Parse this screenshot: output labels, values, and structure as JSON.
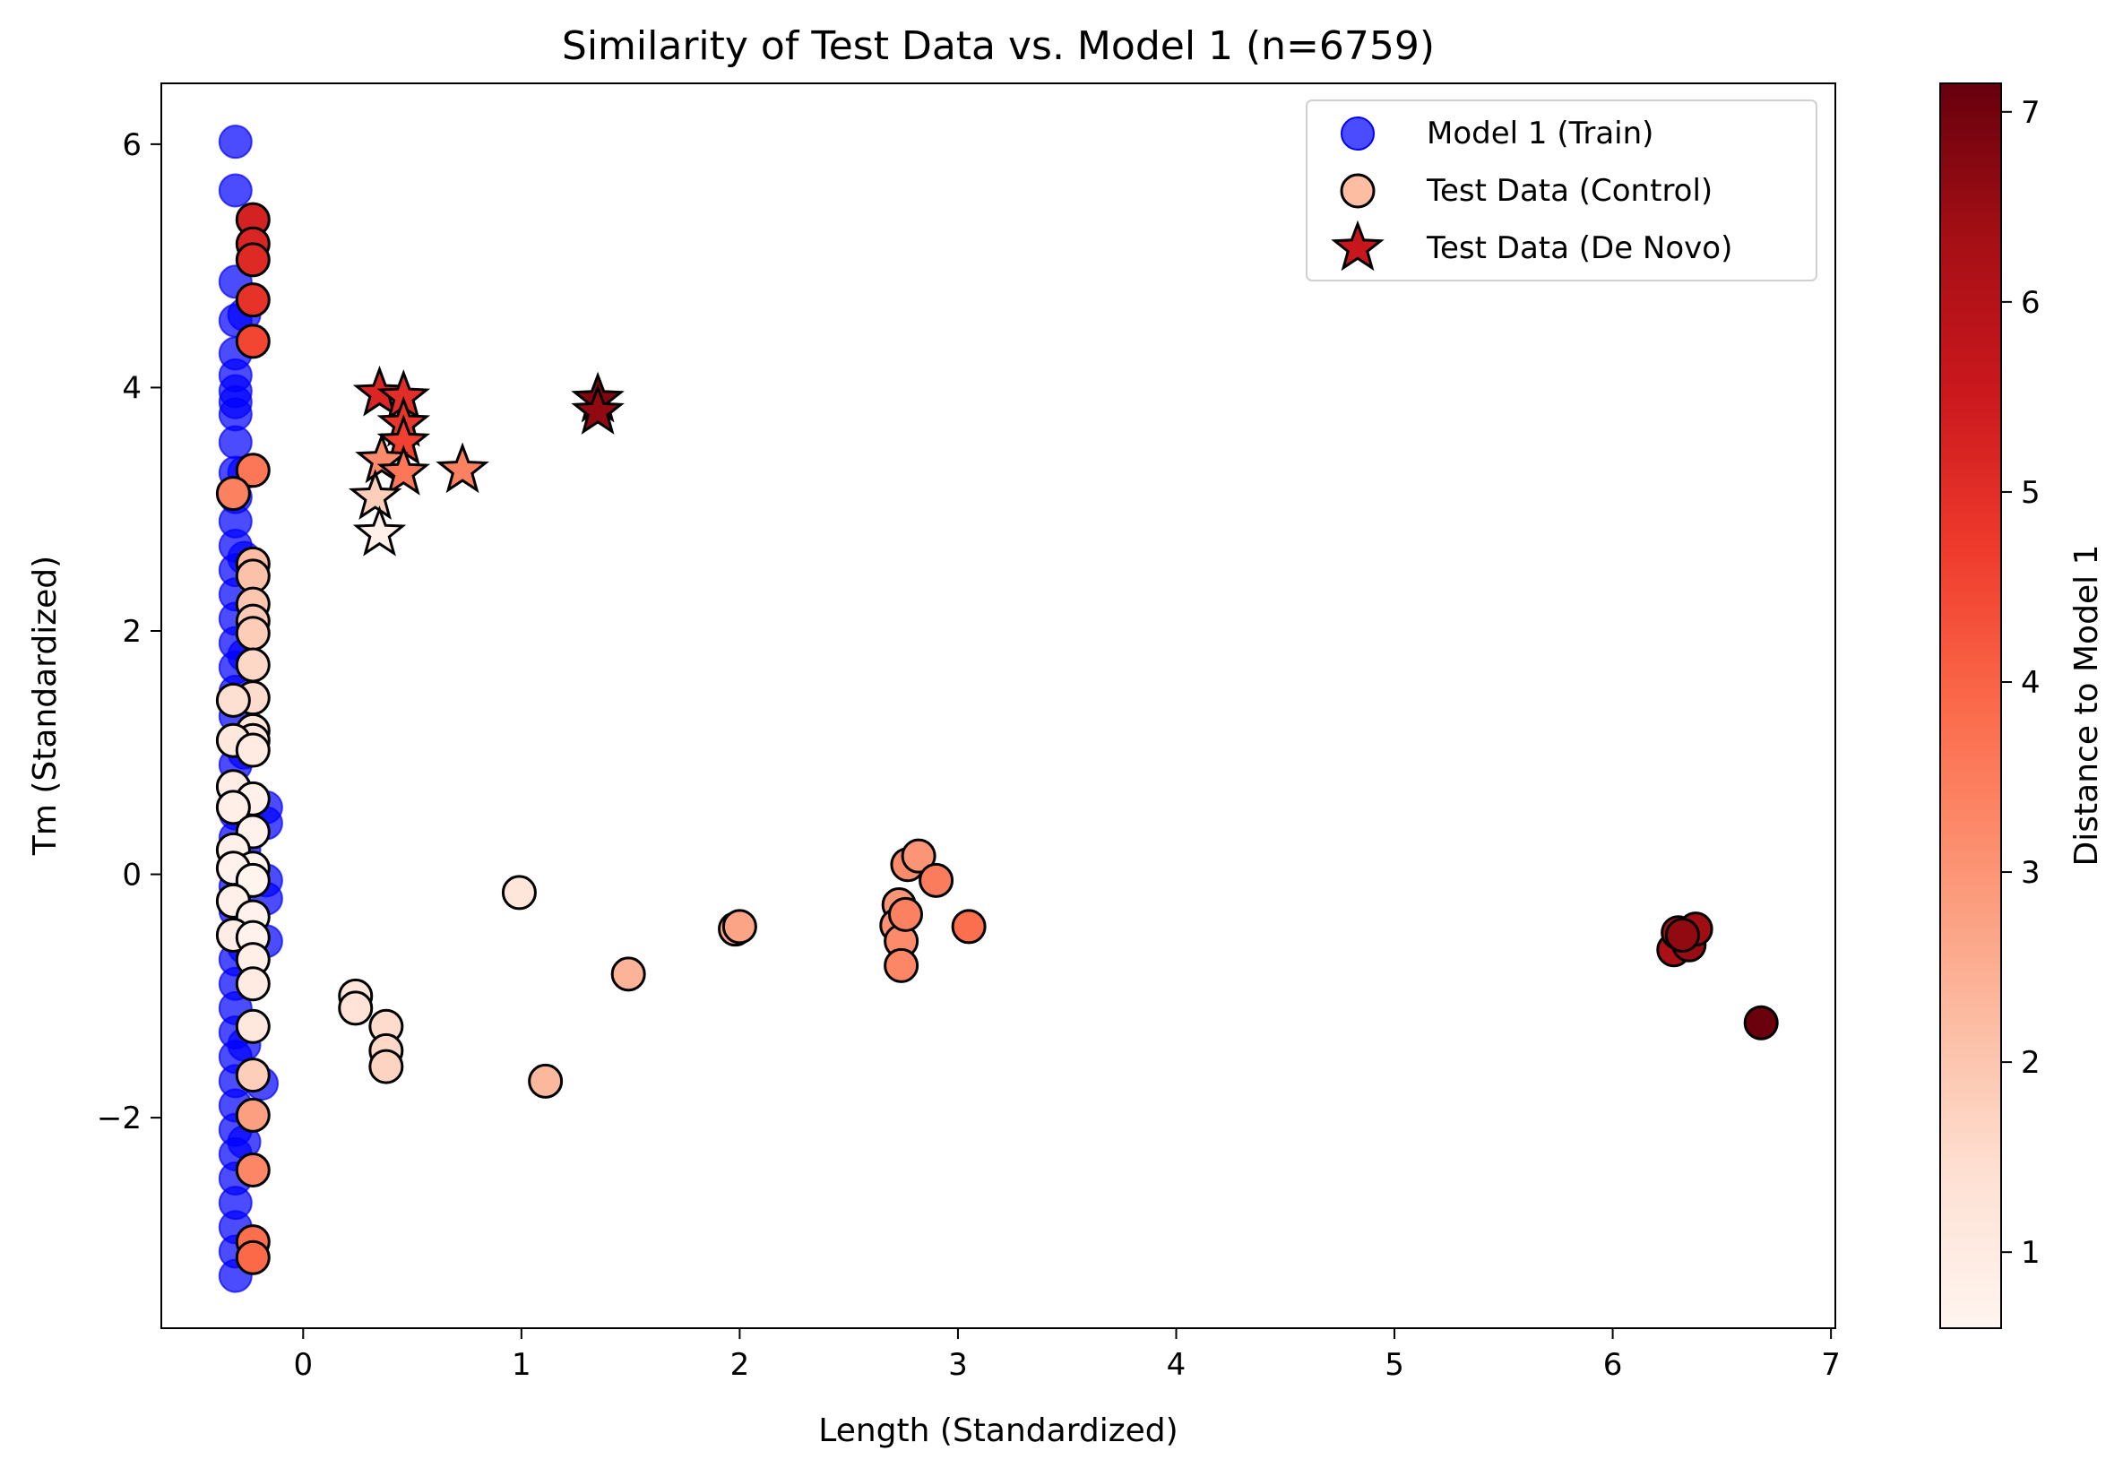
{
  "chart_data": {
    "type": "scatter",
    "title": "Similarity of Test Data vs. Model 1 (n=6759)",
    "xlabel": "Length (Standardized)",
    "ylabel": "Tm (Standardized)",
    "xlim": [
      -0.65,
      7.02
    ],
    "ylim": [
      -3.73,
      6.5
    ],
    "xticks": [
      0,
      1,
      2,
      3,
      4,
      5,
      6,
      7
    ],
    "yticks": [
      -2,
      0,
      2,
      4,
      6
    ],
    "xtick_labels": [
      "0",
      "1",
      "2",
      "3",
      "4",
      "5",
      "6",
      "7"
    ],
    "ytick_labels": [
      "−2",
      "0",
      "2",
      "4",
      "6"
    ],
    "grid": false,
    "legend_position": "top-right",
    "colorbar": {
      "label": "Distance to Model 1",
      "colormap": "Reds",
      "range": [
        0.6,
        7.15
      ],
      "ticks": [
        1,
        2,
        3,
        4,
        5,
        6,
        7
      ],
      "tick_labels": [
        "1",
        "2",
        "3",
        "4",
        "5",
        "6",
        "7"
      ]
    },
    "series": [
      {
        "name": "Model 1 (Train)",
        "marker": "circle",
        "color": "#0000ff",
        "opacity": 0.7,
        "points": [
          [
            -0.31,
            6.02
          ],
          [
            -0.31,
            5.62
          ],
          [
            -0.31,
            4.87
          ],
          [
            -0.31,
            4.55
          ],
          [
            -0.31,
            4.28
          ],
          [
            -0.31,
            4.1
          ],
          [
            -0.31,
            3.97
          ],
          [
            -0.31,
            3.88
          ],
          [
            -0.31,
            3.78
          ],
          [
            -0.31,
            3.55
          ],
          [
            -0.31,
            3.3
          ],
          [
            -0.31,
            3.1
          ],
          [
            -0.31,
            2.9
          ],
          [
            -0.31,
            2.7
          ],
          [
            -0.31,
            2.5
          ],
          [
            -0.31,
            2.3
          ],
          [
            -0.31,
            2.1
          ],
          [
            -0.31,
            1.9
          ],
          [
            -0.31,
            1.7
          ],
          [
            -0.31,
            1.5
          ],
          [
            -0.31,
            1.3
          ],
          [
            -0.31,
            1.1
          ],
          [
            -0.31,
            0.9
          ],
          [
            -0.31,
            0.7
          ],
          [
            -0.31,
            0.5
          ],
          [
            -0.31,
            0.3
          ],
          [
            -0.31,
            0.1
          ],
          [
            -0.31,
            -0.1
          ],
          [
            -0.31,
            -0.3
          ],
          [
            -0.31,
            -0.5
          ],
          [
            -0.31,
            -0.7
          ],
          [
            -0.31,
            -0.9
          ],
          [
            -0.31,
            -1.1
          ],
          [
            -0.31,
            -1.3
          ],
          [
            -0.31,
            -1.5
          ],
          [
            -0.31,
            -1.7
          ],
          [
            -0.31,
            -1.9
          ],
          [
            -0.31,
            -2.1
          ],
          [
            -0.31,
            -2.3
          ],
          [
            -0.31,
            -2.5
          ],
          [
            -0.31,
            -2.7
          ],
          [
            -0.31,
            -2.9
          ],
          [
            -0.31,
            -3.1
          ],
          [
            -0.31,
            -3.3
          ],
          [
            -0.27,
            4.6
          ],
          [
            -0.27,
            3.3
          ],
          [
            -0.27,
            2.6
          ],
          [
            -0.27,
            1.8
          ],
          [
            -0.27,
            1.0
          ],
          [
            -0.27,
            0.2
          ],
          [
            -0.27,
            -0.6
          ],
          [
            -0.27,
            -1.4
          ],
          [
            -0.27,
            -2.2
          ],
          [
            -0.17,
            0.55
          ],
          [
            -0.17,
            0.42
          ],
          [
            -0.17,
            -0.05
          ],
          [
            -0.17,
            -0.2
          ],
          [
            -0.17,
            -0.55
          ],
          [
            -0.19,
            -1.72
          ]
        ]
      },
      {
        "name": "Test Data (Control)",
        "marker": "circle",
        "points": [
          [
            -0.23,
            5.38,
            5.3
          ],
          [
            -0.23,
            5.18,
            5.2
          ],
          [
            -0.23,
            5.05,
            5.1
          ],
          [
            -0.23,
            4.72,
            4.9
          ],
          [
            -0.23,
            4.38,
            4.5
          ],
          [
            -0.23,
            3.32,
            3.6
          ],
          [
            -0.32,
            3.13,
            3.4
          ],
          [
            -0.23,
            2.55,
            2.2
          ],
          [
            -0.23,
            2.45,
            2.1
          ],
          [
            -0.23,
            2.22,
            2.0
          ],
          [
            -0.23,
            2.08,
            1.9
          ],
          [
            -0.23,
            1.98,
            1.85
          ],
          [
            -0.23,
            1.72,
            1.6
          ],
          [
            -0.23,
            1.45,
            1.5
          ],
          [
            -0.32,
            1.43,
            1.4
          ],
          [
            -0.23,
            1.18,
            1.2
          ],
          [
            -0.23,
            1.1,
            1.15
          ],
          [
            -0.32,
            1.1,
            1.1
          ],
          [
            -0.23,
            1.02,
            1.0
          ],
          [
            -0.32,
            0.72,
            0.9
          ],
          [
            -0.23,
            0.62,
            0.8
          ],
          [
            -0.32,
            0.55,
            0.85
          ],
          [
            -0.23,
            0.35,
            0.7
          ],
          [
            -0.32,
            0.2,
            0.8
          ],
          [
            -0.23,
            0.05,
            0.65
          ],
          [
            -0.32,
            0.05,
            0.75
          ],
          [
            -0.23,
            -0.05,
            0.65
          ],
          [
            -0.32,
            -0.22,
            0.8
          ],
          [
            -0.23,
            -0.35,
            0.7
          ],
          [
            -0.32,
            -0.5,
            0.9
          ],
          [
            -0.23,
            -0.52,
            0.75
          ],
          [
            -0.23,
            -0.7,
            0.85
          ],
          [
            -0.23,
            -0.9,
            1.0
          ],
          [
            -0.23,
            -1.25,
            1.1
          ],
          [
            -0.23,
            -1.65,
            1.8
          ],
          [
            -0.23,
            -1.98,
            2.8
          ],
          [
            -0.23,
            -2.43,
            3.3
          ],
          [
            -0.23,
            -3.02,
            3.8
          ],
          [
            -0.23,
            -3.15,
            3.9
          ],
          [
            0.24,
            -1.0,
            1.2
          ],
          [
            0.24,
            -1.1,
            1.3
          ],
          [
            0.38,
            -1.25,
            1.5
          ],
          [
            0.38,
            -1.45,
            1.6
          ],
          [
            0.38,
            -1.58,
            1.7
          ],
          [
            0.99,
            -0.15,
            1.2
          ],
          [
            1.11,
            -1.7,
            2.3
          ],
          [
            1.49,
            -0.82,
            2.4
          ],
          [
            1.98,
            -0.45,
            2.6
          ],
          [
            2.0,
            -0.43,
            2.7
          ],
          [
            2.73,
            -0.25,
            3.0
          ],
          [
            2.72,
            -0.42,
            3.1
          ],
          [
            2.74,
            -0.55,
            3.2
          ],
          [
            2.74,
            -0.75,
            3.3
          ],
          [
            2.76,
            -0.33,
            3.4
          ],
          [
            2.77,
            0.08,
            3.2
          ],
          [
            2.82,
            0.15,
            3.0
          ],
          [
            2.9,
            -0.05,
            3.5
          ],
          [
            3.05,
            -0.43,
            3.8
          ],
          [
            6.28,
            -0.62,
            6.2
          ],
          [
            6.3,
            -0.48,
            6.3
          ],
          [
            6.33,
            -0.52,
            6.4
          ],
          [
            6.35,
            -0.58,
            6.5
          ],
          [
            6.38,
            -0.45,
            6.4
          ],
          [
            6.32,
            -0.5,
            6.6
          ],
          [
            6.68,
            -1.22,
            7.1
          ]
        ]
      },
      {
        "name": "Test Data (De Novo)",
        "marker": "star",
        "points": [
          [
            0.35,
            3.95,
            5.2
          ],
          [
            0.46,
            3.92,
            5.0
          ],
          [
            0.46,
            3.7,
            4.8
          ],
          [
            0.46,
            3.55,
            4.6
          ],
          [
            0.36,
            3.4,
            3.2
          ],
          [
            0.46,
            3.3,
            3.6
          ],
          [
            0.73,
            3.32,
            3.4
          ],
          [
            0.33,
            3.1,
            1.8
          ],
          [
            0.35,
            2.8,
            0.8
          ],
          [
            1.35,
            3.9,
            6.8
          ],
          [
            1.35,
            3.8,
            6.6
          ]
        ]
      }
    ]
  }
}
